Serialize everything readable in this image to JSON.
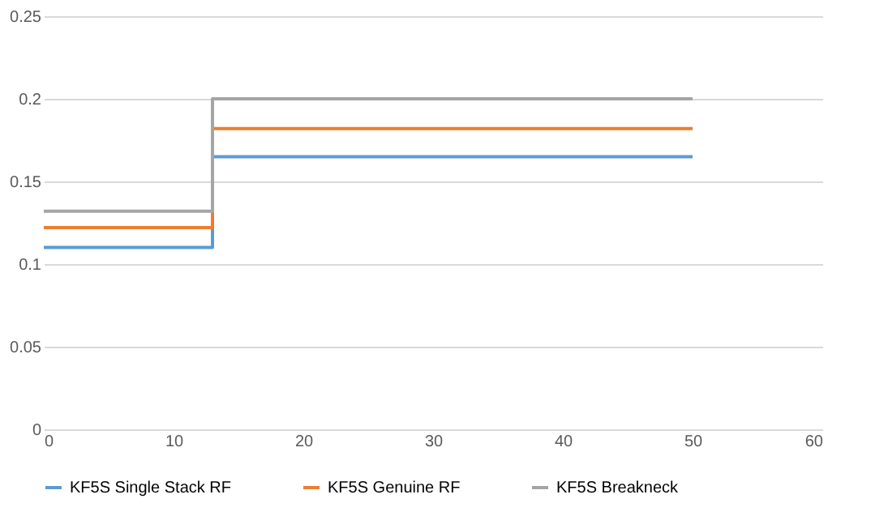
{
  "chart_data": {
    "type": "step",
    "x": [
      0,
      13,
      50
    ],
    "series": [
      {
        "name": "KF5S Single Stack RF",
        "color": "#5b9bd5",
        "values": [
          0.11,
          0.165,
          0.165
        ]
      },
      {
        "name": "KF5S Genuine RF",
        "color": "#ed7d31",
        "values": [
          0.122,
          0.182,
          0.182
        ]
      },
      {
        "name": "KF5S Breakneck",
        "color": "#a5a5a5",
        "values": [
          0.132,
          0.2,
          0.2
        ]
      }
    ],
    "xlim": [
      0,
      60
    ],
    "xticks": [
      0,
      10,
      20,
      30,
      40,
      50,
      60
    ],
    "ylim": [
      0,
      0.25
    ],
    "yticks": [
      0,
      0.05,
      0.1,
      0.15,
      0.2,
      0.25
    ],
    "grid": "y",
    "legend": "bottom",
    "marker": "none",
    "line_style": "solid"
  }
}
